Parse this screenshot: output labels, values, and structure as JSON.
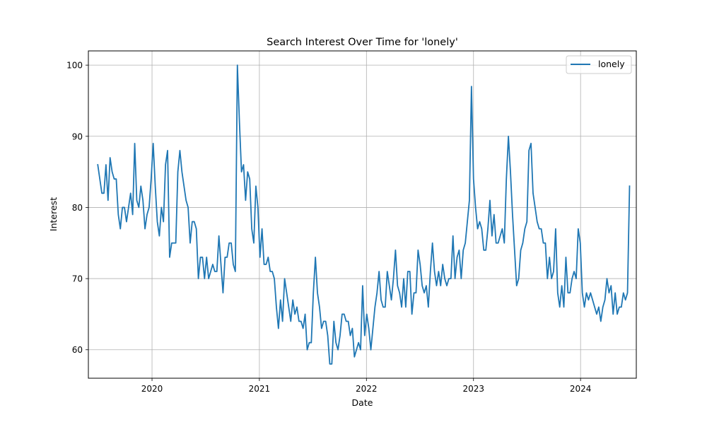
{
  "chart_data": {
    "type": "line",
    "title": "Search Interest Over Time for 'lonely'",
    "xlabel": "Date",
    "ylabel": "Interest",
    "x_ticks": [
      "2020",
      "2021",
      "2022",
      "2023",
      "2024"
    ],
    "y_ticks": [
      60,
      70,
      80,
      90,
      100
    ],
    "ylim": [
      56,
      102
    ],
    "xlim": [
      "2019-05-29",
      "2024-07-09"
    ],
    "grid": true,
    "legend": "top-right",
    "colors": {
      "line": "#1f77b4"
    },
    "series": [
      {
        "name": "lonely",
        "x": [
          "2019-06-30",
          "2019-07-07",
          "2019-07-14",
          "2019-07-21",
          "2019-07-28",
          "2019-08-04",
          "2019-08-11",
          "2019-08-18",
          "2019-08-25",
          "2019-09-01",
          "2019-09-08",
          "2019-09-15",
          "2019-09-22",
          "2019-09-29",
          "2019-10-06",
          "2019-10-13",
          "2019-10-20",
          "2019-10-27",
          "2019-11-03",
          "2019-11-10",
          "2019-11-17",
          "2019-11-24",
          "2019-12-01",
          "2019-12-08",
          "2019-12-15",
          "2019-12-22",
          "2019-12-29",
          "2020-01-05",
          "2020-01-12",
          "2020-01-19",
          "2020-01-26",
          "2020-02-02",
          "2020-02-09",
          "2020-02-16",
          "2020-02-23",
          "2020-03-01",
          "2020-03-08",
          "2020-03-15",
          "2020-03-22",
          "2020-03-29",
          "2020-04-05",
          "2020-04-12",
          "2020-04-19",
          "2020-04-26",
          "2020-05-03",
          "2020-05-10",
          "2020-05-17",
          "2020-05-24",
          "2020-05-31",
          "2020-06-07",
          "2020-06-14",
          "2020-06-21",
          "2020-06-28",
          "2020-07-05",
          "2020-07-12",
          "2020-07-19",
          "2020-07-26",
          "2020-08-02",
          "2020-08-09",
          "2020-08-16",
          "2020-08-23",
          "2020-08-30",
          "2020-09-06",
          "2020-09-13",
          "2020-09-20",
          "2020-09-27",
          "2020-10-04",
          "2020-10-11",
          "2020-10-18",
          "2020-10-25",
          "2020-11-01",
          "2020-11-08",
          "2020-11-15",
          "2020-11-22",
          "2020-11-29",
          "2020-12-06",
          "2020-12-13",
          "2020-12-20",
          "2020-12-27",
          "2021-01-03",
          "2021-01-10",
          "2021-01-17",
          "2021-01-24",
          "2021-01-31",
          "2021-02-07",
          "2021-02-14",
          "2021-02-21",
          "2021-02-28",
          "2021-03-07",
          "2021-03-14",
          "2021-03-21",
          "2021-03-28",
          "2021-04-04",
          "2021-04-11",
          "2021-04-18",
          "2021-04-25",
          "2021-05-02",
          "2021-05-09",
          "2021-05-16",
          "2021-05-23",
          "2021-05-30",
          "2021-06-06",
          "2021-06-13",
          "2021-06-20",
          "2021-06-27",
          "2021-07-04",
          "2021-07-11",
          "2021-07-18",
          "2021-07-25",
          "2021-08-01",
          "2021-08-08",
          "2021-08-15",
          "2021-08-22",
          "2021-08-29",
          "2021-09-05",
          "2021-09-12",
          "2021-09-19",
          "2021-09-26",
          "2021-10-03",
          "2021-10-10",
          "2021-10-17",
          "2021-10-24",
          "2021-10-31",
          "2021-11-07",
          "2021-11-14",
          "2021-11-21",
          "2021-11-28",
          "2021-12-05",
          "2021-12-12",
          "2021-12-19",
          "2021-12-26",
          "2022-01-02",
          "2022-01-09",
          "2022-01-16",
          "2022-01-23",
          "2022-01-30",
          "2022-02-06",
          "2022-02-13",
          "2022-02-20",
          "2022-02-27",
          "2022-03-06",
          "2022-03-13",
          "2022-03-20",
          "2022-03-27",
          "2022-04-03",
          "2022-04-10",
          "2022-04-17",
          "2022-04-24",
          "2022-05-01",
          "2022-05-08",
          "2022-05-15",
          "2022-05-22",
          "2022-05-29",
          "2022-06-05",
          "2022-06-12",
          "2022-06-19",
          "2022-06-26",
          "2022-07-03",
          "2022-07-10",
          "2022-07-17",
          "2022-07-24",
          "2022-07-31",
          "2022-08-07",
          "2022-08-14",
          "2022-08-21",
          "2022-08-28",
          "2022-09-04",
          "2022-09-11",
          "2022-09-18",
          "2022-09-25",
          "2022-10-02",
          "2022-10-09",
          "2022-10-16",
          "2022-10-23",
          "2022-10-30",
          "2022-11-06",
          "2022-11-13",
          "2022-11-20",
          "2022-11-27",
          "2022-12-04",
          "2022-12-11",
          "2022-12-18",
          "2022-12-25",
          "2023-01-01",
          "2023-01-08",
          "2023-01-15",
          "2023-01-22",
          "2023-01-29",
          "2023-02-05",
          "2023-02-12",
          "2023-02-19",
          "2023-02-26",
          "2023-03-05",
          "2023-03-12",
          "2023-03-19",
          "2023-03-26",
          "2023-04-02",
          "2023-04-09",
          "2023-04-16",
          "2023-04-23",
          "2023-04-30",
          "2023-05-07",
          "2023-05-14",
          "2023-05-21",
          "2023-05-28",
          "2023-06-04",
          "2023-06-11",
          "2023-06-18",
          "2023-06-25",
          "2023-07-02",
          "2023-07-09",
          "2023-07-16",
          "2023-07-23",
          "2023-07-30",
          "2023-08-06",
          "2023-08-13",
          "2023-08-20",
          "2023-08-27",
          "2023-09-03",
          "2023-09-10",
          "2023-09-17",
          "2023-09-24",
          "2023-10-01",
          "2023-10-08",
          "2023-10-15",
          "2023-10-22",
          "2023-10-29",
          "2023-11-05",
          "2023-11-12",
          "2023-11-19",
          "2023-11-26",
          "2023-12-03",
          "2023-12-10",
          "2023-12-17",
          "2023-12-24",
          "2023-12-31",
          "2024-01-07",
          "2024-01-14",
          "2024-01-21",
          "2024-01-28",
          "2024-02-04",
          "2024-02-11",
          "2024-02-18",
          "2024-02-25",
          "2024-03-03",
          "2024-03-10",
          "2024-03-17",
          "2024-03-24",
          "2024-03-31",
          "2024-04-07",
          "2024-04-14",
          "2024-04-21",
          "2024-04-28",
          "2024-05-05",
          "2024-05-12",
          "2024-05-19",
          "2024-05-26",
          "2024-06-02",
          "2024-06-09",
          "2024-06-16"
        ],
        "values": [
          86,
          84,
          82,
          82,
          86,
          81,
          87,
          85,
          84,
          84,
          79,
          77,
          80,
          80,
          78,
          80,
          82,
          79,
          89,
          81,
          80,
          83,
          81,
          77,
          79,
          80,
          84,
          89,
          83,
          78,
          76,
          80,
          78,
          86,
          88,
          73,
          75,
          75,
          75,
          85,
          88,
          85,
          83,
          81,
          80,
          75,
          78,
          78,
          77,
          70,
          73,
          73,
          70,
          73,
          70,
          71,
          72,
          71,
          71,
          76,
          72,
          68,
          73,
          73,
          75,
          75,
          72,
          71,
          100,
          92,
          85,
          86,
          81,
          85,
          84,
          77,
          75,
          83,
          80,
          73,
          77,
          72,
          72,
          73,
          71,
          71,
          70,
          66,
          63,
          67,
          64,
          70,
          68,
          66,
          64,
          67,
          65,
          66,
          64,
          64,
          63,
          65,
          60,
          61,
          61,
          68,
          73,
          68,
          66,
          63,
          64,
          64,
          62,
          58,
          58,
          64,
          61,
          60,
          62,
          65,
          65,
          64,
          64,
          62,
          63,
          59,
          60,
          61,
          60,
          69,
          62,
          65,
          63,
          60,
          63,
          66,
          68,
          71,
          67,
          66,
          66,
          71,
          69,
          67,
          70,
          74,
          69,
          68,
          66,
          70,
          66,
          71,
          71,
          65,
          68,
          68,
          74,
          72,
          69,
          68,
          69,
          66,
          71,
          75,
          71,
          69,
          71,
          69,
          72,
          70,
          69,
          70,
          70,
          76,
          70,
          73,
          74,
          70,
          74,
          75,
          78,
          81,
          97,
          84,
          80,
          77,
          78,
          77,
          74,
          74,
          77,
          81,
          76,
          79,
          75,
          75,
          76,
          77,
          75,
          84,
          90,
          85,
          79,
          74,
          69,
          70,
          74,
          75,
          77,
          78,
          88,
          89,
          82,
          80,
          78,
          77,
          77,
          75,
          75,
          70,
          73,
          70,
          71,
          77,
          68,
          66,
          69,
          66,
          73,
          68,
          68,
          70,
          71,
          70,
          77,
          75,
          68,
          66,
          68,
          67,
          68,
          67,
          66,
          65,
          66,
          64,
          66,
          67,
          70,
          68,
          69,
          65,
          68,
          65,
          66,
          66,
          68,
          67,
          68,
          83
        ]
      }
    ]
  }
}
